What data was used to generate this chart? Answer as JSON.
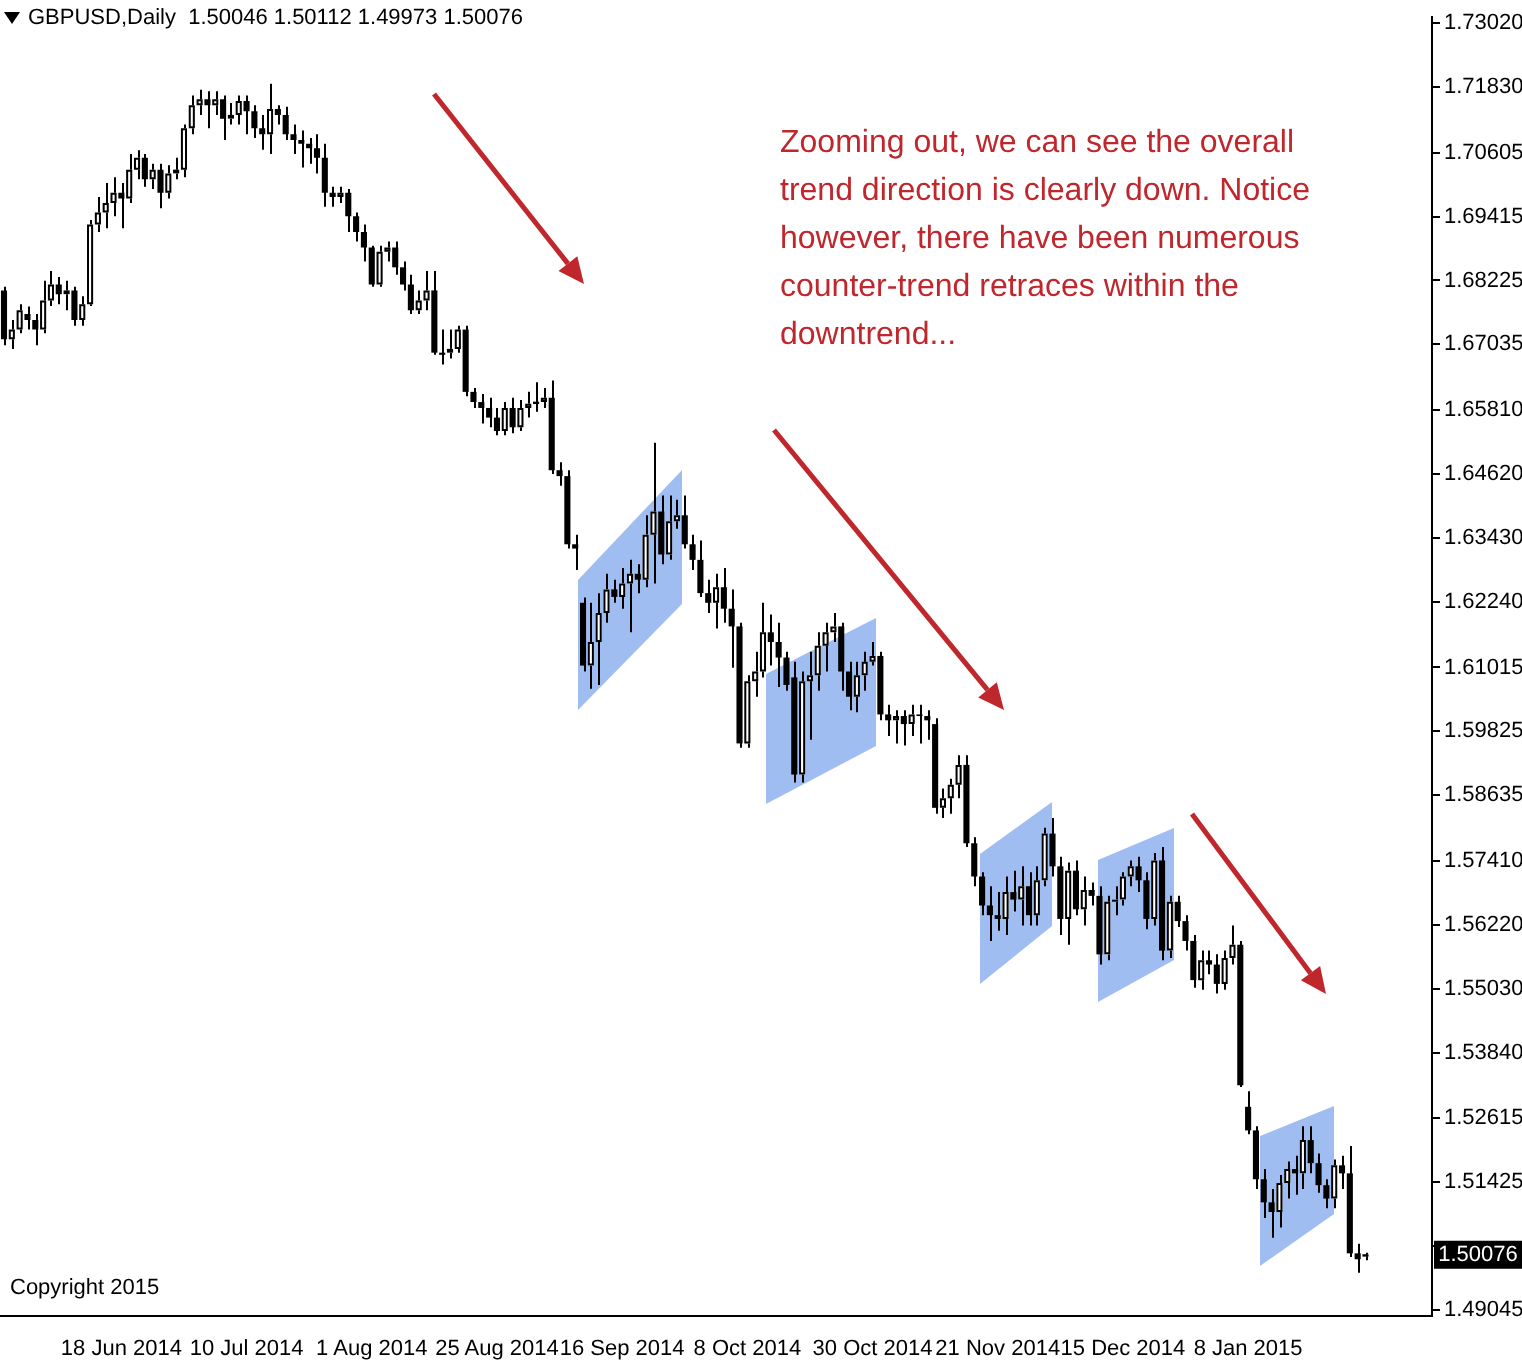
{
  "chart_data": {
    "type": "candlestick",
    "title": "GBPUSD,Daily  1.50046 1.50112 1.49973 1.50076",
    "categories": [
      null,
      null,
      null,
      null,
      null,
      null,
      null,
      null,
      null,
      null,
      null,
      null,
      null,
      null,
      null,
      "18 Jun 2014",
      null,
      null,
      null,
      null,
      null,
      null,
      null,
      null,
      null,
      null,
      null,
      null,
      null,
      null,
      null,
      "10 Jul 2014",
      null,
      null,
      null,
      null,
      null,
      null,
      null,
      null,
      null,
      null,
      null,
      null,
      null,
      null,
      null,
      "1 Aug 2014",
      null,
      null,
      null,
      null,
      null,
      null,
      null,
      null,
      null,
      null,
      null,
      null,
      null,
      null,
      null,
      "25 Aug 2014",
      null,
      null,
      null,
      null,
      null,
      null,
      null,
      null,
      null,
      null,
      null,
      null,
      null,
      null,
      null,
      "16 Sep 2014",
      null,
      null,
      null,
      null,
      null,
      null,
      null,
      null,
      null,
      null,
      null,
      null,
      null,
      null,
      null,
      "8 Oct 2014",
      null,
      null,
      null,
      null,
      null,
      null,
      null,
      null,
      null,
      null,
      null,
      null,
      null,
      null,
      null,
      "30 Oct 2014",
      null,
      null,
      null,
      null,
      null,
      null,
      null,
      null,
      null,
      null,
      null,
      null,
      null,
      null,
      null,
      "21 Nov 2014",
      null,
      null,
      null,
      null,
      null,
      null,
      null,
      null,
      null,
      null,
      null,
      null,
      null,
      null,
      null,
      "15 Dec 2014",
      null,
      null,
      null,
      null,
      null,
      null,
      null,
      null,
      null,
      null,
      null,
      null,
      null,
      null,
      null,
      "8 Jan 2015",
      null,
      null,
      null,
      null,
      null,
      null,
      null,
      null,
      null,
      null,
      null,
      null,
      null,
      null,
      null,
      null,
      null,
      null,
      null,
      null,
      null,
      null,
      null
    ],
    "ohlc": [
      [
        1.6804,
        1.6811,
        1.6702,
        1.6713
      ],
      [
        1.6713,
        1.6749,
        1.6695,
        1.6731
      ],
      [
        1.6731,
        1.6778,
        1.6724,
        1.6767
      ],
      [
        1.676,
        1.6774,
        1.6731,
        1.6749
      ],
      [
        1.6749,
        1.676,
        1.6702,
        1.6731
      ],
      [
        1.6731,
        1.6822,
        1.6724,
        1.6785
      ],
      [
        1.6785,
        1.684,
        1.6775,
        1.6815
      ],
      [
        1.6815,
        1.6829,
        1.6778,
        1.6797
      ],
      [
        1.6797,
        1.6822,
        1.6767,
        1.6804
      ],
      [
        1.6804,
        1.6811,
        1.6738,
        1.6749
      ],
      [
        1.6749,
        1.6793,
        1.6738,
        1.6778
      ],
      [
        1.6778,
        1.6935,
        1.6775,
        1.6927
      ],
      [
        1.6927,
        1.6978,
        1.6913,
        1.6949
      ],
      [
        1.6949,
        1.7004,
        1.692,
        1.6967
      ],
      [
        1.6967,
        1.7015,
        1.6942,
        1.6986
      ],
      [
        1.6986,
        1.7004,
        1.692,
        1.6975
      ],
      [
        1.6975,
        1.7058,
        1.6967,
        1.7029
      ],
      [
        1.7029,
        1.7065,
        1.7011,
        1.7051
      ],
      [
        1.7051,
        1.7058,
        1.6997,
        1.7011
      ],
      [
        1.7011,
        1.704,
        1.6993,
        1.7029
      ],
      [
        1.7029,
        1.704,
        1.6957,
        1.6986
      ],
      [
        1.6986,
        1.7037,
        1.6975,
        1.7022
      ],
      [
        1.7022,
        1.7051,
        1.7011,
        1.7029
      ],
      [
        1.7029,
        1.7113,
        1.7015,
        1.7106
      ],
      [
        1.7106,
        1.7167,
        1.7095,
        1.7149
      ],
      [
        1.7149,
        1.7178,
        1.7131,
        1.716
      ],
      [
        1.716,
        1.7175,
        1.7106,
        1.7149
      ],
      [
        1.7149,
        1.7175,
        1.7131,
        1.716
      ],
      [
        1.716,
        1.7167,
        1.7084,
        1.7124
      ],
      [
        1.7124,
        1.7153,
        1.7113,
        1.7131
      ],
      [
        1.7131,
        1.7167,
        1.7113,
        1.7157
      ],
      [
        1.7157,
        1.7167,
        1.7095,
        1.7138
      ],
      [
        1.7138,
        1.7149,
        1.7088,
        1.7106
      ],
      [
        1.7106,
        1.7131,
        1.7066,
        1.7095
      ],
      [
        1.7095,
        1.7189,
        1.7058,
        1.7142
      ],
      [
        1.7142,
        1.7149,
        1.7113,
        1.7131
      ],
      [
        1.7131,
        1.7146,
        1.7084,
        1.7095
      ],
      [
        1.7095,
        1.7113,
        1.7058,
        1.7084
      ],
      [
        1.7084,
        1.7102,
        1.7033,
        1.7077
      ],
      [
        1.7077,
        1.7088,
        1.704,
        1.7069
      ],
      [
        1.7069,
        1.7095,
        1.7022,
        1.7051
      ],
      [
        1.7051,
        1.7077,
        1.696,
        1.6986
      ],
      [
        1.6986,
        1.6997,
        1.696,
        1.6978
      ],
      [
        1.6978,
        1.6997,
        1.6967,
        1.6986
      ],
      [
        1.6986,
        1.6993,
        1.6913,
        1.6942
      ],
      [
        1.6942,
        1.6949,
        1.6895,
        1.6913
      ],
      [
        1.6913,
        1.6927,
        1.6858,
        1.6884
      ],
      [
        1.6884,
        1.6887,
        1.6811,
        1.6815
      ],
      [
        1.6815,
        1.6887,
        1.6811,
        1.6876
      ],
      [
        1.6876,
        1.6895,
        1.6858,
        1.6884
      ],
      [
        1.6884,
        1.6895,
        1.6833,
        1.6847
      ],
      [
        1.6847,
        1.6858,
        1.6804,
        1.6815
      ],
      [
        1.6815,
        1.6833,
        1.676,
        1.6767
      ],
      [
        1.6767,
        1.6804,
        1.676,
        1.6785
      ],
      [
        1.6785,
        1.684,
        1.6767,
        1.6804
      ],
      [
        1.6804,
        1.684,
        1.6684,
        1.6688
      ],
      [
        1.6688,
        1.6731,
        1.6666,
        1.6684
      ],
      [
        1.6688,
        1.6731,
        1.6677,
        1.6695
      ],
      [
        1.6695,
        1.6738,
        1.6688,
        1.6731
      ],
      [
        1.6731,
        1.6738,
        1.6607,
        1.6615
      ],
      [
        1.6615,
        1.6622,
        1.6585,
        1.6596
      ],
      [
        1.6596,
        1.6611,
        1.6556,
        1.6585
      ],
      [
        1.6585,
        1.6604,
        1.6549,
        1.6567
      ],
      [
        1.6567,
        1.6585,
        1.6534,
        1.6542
      ],
      [
        1.6542,
        1.6596,
        1.6534,
        1.6585
      ],
      [
        1.6585,
        1.6604,
        1.6538,
        1.6549
      ],
      [
        1.6549,
        1.66,
        1.6542,
        1.6585
      ],
      [
        1.6585,
        1.6615,
        1.6567,
        1.6593
      ],
      [
        1.6593,
        1.6633,
        1.6578,
        1.6596
      ],
      [
        1.6596,
        1.6622,
        1.6585,
        1.6604
      ],
      [
        1.6604,
        1.6636,
        1.6462,
        1.6469
      ],
      [
        1.6469,
        1.6484,
        1.644,
        1.6458
      ],
      [
        1.6458,
        1.6469,
        1.6323,
        1.6331
      ],
      [
        1.6331,
        1.6349,
        1.6283,
        1.6323
      ],
      [
        1.6222,
        1.6232,
        1.6094,
        1.6105
      ],
      [
        1.6105,
        1.6222,
        1.6062,
        1.6149
      ],
      [
        1.6149,
        1.624,
        1.6069,
        1.6203
      ],
      [
        1.6203,
        1.6276,
        1.6185,
        1.6247
      ],
      [
        1.6247,
        1.6265,
        1.6222,
        1.6233
      ],
      [
        1.6233,
        1.6287,
        1.6211,
        1.6258
      ],
      [
        1.6258,
        1.6302,
        1.6167,
        1.6276
      ],
      [
        1.6276,
        1.6294,
        1.624,
        1.6265
      ],
      [
        1.6265,
        1.6385,
        1.6251,
        1.6349
      ],
      [
        1.6349,
        1.652,
        1.6258,
        1.6392
      ],
      [
        1.6392,
        1.6422,
        1.6294,
        1.6312
      ],
      [
        1.6312,
        1.6422,
        1.6302,
        1.6374
      ],
      [
        1.6374,
        1.6414,
        1.636,
        1.6385
      ],
      [
        1.6385,
        1.6422,
        1.6323,
        1.6331
      ],
      [
        1.6331,
        1.6349,
        1.6283,
        1.6302
      ],
      [
        1.6302,
        1.6338,
        1.6233,
        1.624
      ],
      [
        1.624,
        1.6265,
        1.6203,
        1.6222
      ],
      [
        1.6222,
        1.6276,
        1.6174,
        1.6251
      ],
      [
        1.6251,
        1.6287,
        1.6185,
        1.6211
      ],
      [
        1.6211,
        1.6247,
        1.6101,
        1.6178
      ],
      [
        1.6178,
        1.6185,
        1.5952,
        1.596
      ],
      [
        1.596,
        1.6087,
        1.5952,
        1.6076
      ],
      [
        1.6076,
        1.6131,
        1.6047,
        1.6094
      ],
      [
        1.6094,
        1.6222,
        1.6083,
        1.6167
      ],
      [
        1.6167,
        1.62,
        1.6105,
        1.6149
      ],
      [
        1.6149,
        1.6185,
        1.6065,
        1.612
      ],
      [
        1.612,
        1.6131,
        1.6058,
        1.6069
      ],
      [
        1.6083,
        1.6112,
        1.5887,
        1.5902
      ],
      [
        1.5902,
        1.6094,
        1.5887,
        1.6076
      ],
      [
        1.6076,
        1.6131,
        1.5967,
        1.6087
      ],
      [
        1.6087,
        1.6167,
        1.6058,
        1.6142
      ],
      [
        1.6142,
        1.6185,
        1.6094,
        1.6167
      ],
      [
        1.6167,
        1.6203,
        1.6149,
        1.6178
      ],
      [
        1.6178,
        1.6185,
        1.6058,
        1.6094
      ],
      [
        1.6094,
        1.6112,
        1.6022,
        1.6047
      ],
      [
        1.6047,
        1.6112,
        1.6018,
        1.6087
      ],
      [
        1.6087,
        1.6131,
        1.6058,
        1.6112
      ],
      [
        1.6112,
        1.6149,
        1.6105,
        1.6123
      ],
      [
        1.6123,
        1.6131,
        1.6003,
        1.6014
      ],
      [
        1.6014,
        1.6032,
        1.5974,
        1.6003
      ],
      [
        1.6003,
        1.6022,
        1.596,
        1.6011
      ],
      [
        1.6011,
        1.6022,
        1.5956,
        1.5996
      ],
      [
        1.5996,
        1.6032,
        1.5974,
        1.6014
      ],
      [
        1.6014,
        1.6032,
        1.596,
        1.6011
      ],
      [
        1.6011,
        1.6022,
        1.5967,
        1.6003
      ],
      [
        1.5996,
        1.6007,
        1.5829,
        1.584
      ],
      [
        1.584,
        1.5876,
        1.5821,
        1.5858
      ],
      [
        1.5858,
        1.5894,
        1.5829,
        1.5883
      ],
      [
        1.5883,
        1.5938,
        1.5858,
        1.592
      ],
      [
        1.592,
        1.5938,
        1.5767,
        1.5774
      ],
      [
        1.5774,
        1.5785,
        1.5694,
        1.5712
      ],
      [
        1.5712,
        1.572,
        1.564,
        1.5658
      ],
      [
        1.5658,
        1.5694,
        1.5592,
        1.564
      ],
      [
        1.564,
        1.5683,
        1.5611,
        1.5633
      ],
      [
        1.5633,
        1.5712,
        1.5603,
        1.5683
      ],
      [
        1.5683,
        1.5723,
        1.5647,
        1.5669
      ],
      [
        1.5669,
        1.5731,
        1.5621,
        1.5694
      ],
      [
        1.5694,
        1.572,
        1.5621,
        1.564
      ],
      [
        1.564,
        1.5731,
        1.5621,
        1.5705
      ],
      [
        1.5705,
        1.5803,
        1.5694,
        1.5792
      ],
      [
        1.5792,
        1.5821,
        1.5712,
        1.5731
      ],
      [
        1.5731,
        1.5749,
        1.5603,
        1.5633
      ],
      [
        1.5633,
        1.5738,
        1.5585,
        1.5723
      ],
      [
        1.5723,
        1.5742,
        1.564,
        1.5651
      ],
      [
        1.5651,
        1.5712,
        1.5621,
        1.5687
      ],
      [
        1.5687,
        1.5701,
        1.5658,
        1.5676
      ],
      [
        1.5676,
        1.5694,
        1.5548,
        1.5567
      ],
      [
        1.5567,
        1.5676,
        1.5556,
        1.5665
      ],
      [
        1.5665,
        1.5694,
        1.564,
        1.5669
      ],
      [
        1.5669,
        1.572,
        1.5658,
        1.5712
      ],
      [
        1.5712,
        1.5742,
        1.5694,
        1.5731
      ],
      [
        1.5731,
        1.5749,
        1.5683,
        1.5705
      ],
      [
        1.5705,
        1.572,
        1.5614,
        1.5633
      ],
      [
        1.5633,
        1.5756,
        1.5621,
        1.5742
      ],
      [
        1.5742,
        1.5767,
        1.5556,
        1.5574
      ],
      [
        1.5574,
        1.5676,
        1.556,
        1.5665
      ],
      [
        1.5665,
        1.5676,
        1.5618,
        1.5629
      ],
      [
        1.5629,
        1.564,
        1.5574,
        1.5592
      ],
      [
        1.5592,
        1.5603,
        1.5505,
        1.5519
      ],
      [
        1.5519,
        1.5574,
        1.5501,
        1.5556
      ],
      [
        1.5556,
        1.5574,
        1.553,
        1.5548
      ],
      [
        1.5548,
        1.5567,
        1.5494,
        1.5512
      ],
      [
        1.5512,
        1.5574,
        1.5501,
        1.556
      ],
      [
        1.556,
        1.5621,
        1.5548,
        1.5585
      ],
      [
        1.5585,
        1.5592,
        1.532,
        1.5323
      ],
      [
        1.5283,
        1.5312,
        1.5232,
        1.5239
      ],
      [
        1.5239,
        1.5247,
        1.513,
        1.5148
      ],
      [
        1.5148,
        1.5167,
        1.5076,
        1.5105
      ],
      [
        1.5105,
        1.513,
        1.5039,
        1.5087
      ],
      [
        1.5087,
        1.5156,
        1.5058,
        1.5141
      ],
      [
        1.5141,
        1.5181,
        1.5112,
        1.5167
      ],
      [
        1.5167,
        1.5192,
        1.5119,
        1.5159
      ],
      [
        1.5159,
        1.5247,
        1.513,
        1.5221
      ],
      [
        1.5221,
        1.5247,
        1.5159,
        1.5178
      ],
      [
        1.5178,
        1.5196,
        1.5123,
        1.5137
      ],
      [
        1.5137,
        1.5148,
        1.5094,
        1.5112
      ],
      [
        1.5112,
        1.5185,
        1.5094,
        1.5174
      ],
      [
        1.5174,
        1.5192,
        1.513,
        1.5159
      ],
      [
        1.5159,
        1.521,
        1.5003,
        1.501
      ],
      [
        1.501,
        1.5028,
        1.4974,
        1.4999
      ],
      [
        1.50046,
        1.50112,
        1.49973,
        1.50076
      ],
      null,
      null,
      null,
      null,
      null,
      null,
      null,
      null
    ],
    "ylim": [
      1.4894,
      1.7313
    ],
    "yticks": [
      {
        "value": 1.49045,
        "label": "1.49045"
      },
      {
        "value": 1.50235,
        "label": null
      },
      {
        "value": 1.51425,
        "label": "1.51425"
      },
      {
        "value": 1.52615,
        "label": "1.52615"
      },
      {
        "value": 1.5384,
        "label": "1.53840"
      },
      {
        "value": 1.5503,
        "label": "1.55030"
      },
      {
        "value": 1.5622,
        "label": "1.56220"
      },
      {
        "value": 1.5741,
        "label": "1.57410"
      },
      {
        "value": 1.58635,
        "label": "1.58635"
      },
      {
        "value": 1.59825,
        "label": "1.59825"
      },
      {
        "value": 1.61015,
        "label": "1.61015"
      },
      {
        "value": 1.6224,
        "label": "1.62240"
      },
      {
        "value": 1.6343,
        "label": "1.63430"
      },
      {
        "value": 1.6462,
        "label": "1.64620"
      },
      {
        "value": 1.6581,
        "label": "1.65810"
      },
      {
        "value": 1.67035,
        "label": "1.67035"
      },
      {
        "value": 1.68225,
        "label": "1.68225"
      },
      {
        "value": 1.69415,
        "label": "1.69415"
      },
      {
        "value": 1.70605,
        "label": "1.70605"
      },
      {
        "value": 1.7183,
        "label": "1.71830"
      },
      {
        "value": 1.7302,
        "label": "1.73020"
      }
    ],
    "annotations": [
      "Zooming out, we can see the overall trend direction is clearly down. Notice however, there have been numerous counter-trend retraces within the downtrend...",
      "Copyright 2015",
      {
        "text": "1.50076",
        "y": 1.50076
      }
    ]
  }
}
